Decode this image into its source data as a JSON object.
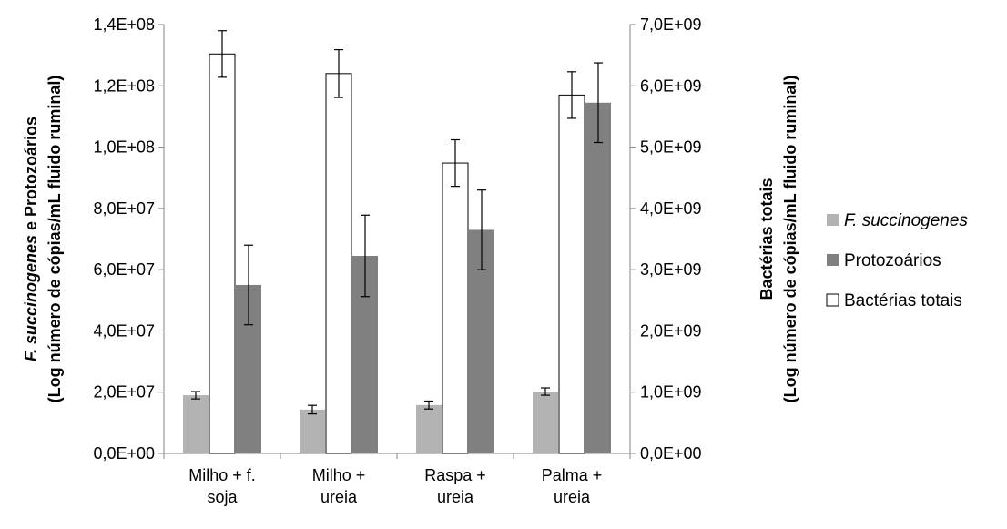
{
  "chart_data": {
    "type": "bar",
    "categories": [
      [
        "Milho + f.",
        "soja"
      ],
      [
        "Milho +",
        "ureia"
      ],
      [
        "Raspa +",
        "ureia"
      ],
      [
        "Palma +",
        "ureia"
      ]
    ],
    "series": [
      {
        "name": "F. succinogenes",
        "axis": "left",
        "color": "#b3b3b3",
        "italic": true,
        "values": [
          19000000,
          14300000,
          15800000,
          20200000
        ],
        "errors": [
          1200000,
          1400000,
          1300000,
          1200000
        ]
      },
      {
        "name": "Bactérias totais",
        "axis": "right",
        "color": "#ffffff",
        "italic": false,
        "values": [
          6520000000,
          6200000000,
          4740000000,
          5850000000
        ],
        "errors": [
          380000000,
          390000000,
          380000000,
          380000000
        ]
      },
      {
        "name": "Protozoários",
        "axis": "left",
        "color": "#808080",
        "italic": false,
        "values": [
          55000000,
          64500000,
          73000000,
          114500000
        ],
        "errors": [
          13000000,
          13300000,
          13000000,
          13000000
        ]
      }
    ],
    "legend_order": [
      "F. succinogenes",
      "Protozoários",
      "Bactérias totais"
    ],
    "legend_position": "right",
    "left_axis": {
      "ylim": [
        0,
        140000000
      ],
      "ticks": [
        "0,0E+00",
        "2,0E+07",
        "4,0E+07",
        "6,0E+07",
        "8,0E+07",
        "1,0E+08",
        "1,2E+08",
        "1,4E+08"
      ],
      "title_lines": [
        [
          {
            "text": "F. succinogenes",
            "italic": true
          },
          {
            "text": " e Protozoários",
            "italic": false
          }
        ],
        [
          {
            "text": "(Log número de cópias/mL  fluido ruminal)",
            "italic": false
          }
        ]
      ]
    },
    "right_axis": {
      "ylim": [
        0,
        7000000000
      ],
      "ticks": [
        "0,0E+00",
        "1,0E+09",
        "2,0E+09",
        "3,0E+09",
        "4,0E+09",
        "5,0E+09",
        "6,0E+09",
        "7,0E+09"
      ],
      "title_lines": [
        [
          {
            "text": "Bactérias totais",
            "italic": false
          }
        ],
        [
          {
            "text": "(Log número de cópias/mL  fluido ruminal)",
            "italic": false
          }
        ]
      ]
    },
    "grid": false
  }
}
